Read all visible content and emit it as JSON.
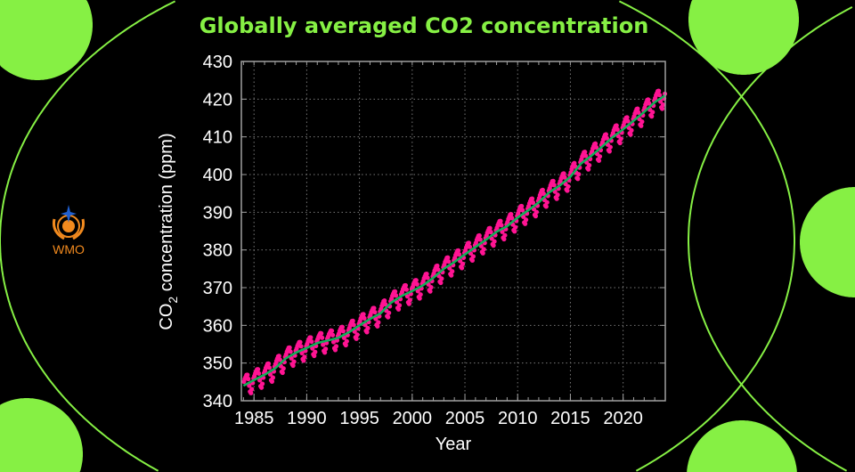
{
  "colors": {
    "accent": "#86f044",
    "monthly": "#ff1493",
    "trend": "#12b05a",
    "axis": "#a0a0a0",
    "text": "#ffffff",
    "logo": "#f28a1e",
    "logo_star": "#1f5fd0"
  },
  "logo": {
    "text": "WMO",
    "icon": "wmo-emblem-icon"
  },
  "chart_data": {
    "type": "line",
    "title": "Globally averaged CO2 concentration",
    "xlabel": "Year",
    "ylabel_main": "CO",
    "ylabel_sub": "2",
    "ylabel_rest": " concentration (ppm)",
    "xlim": [
      1983.8,
      2024
    ],
    "ylim": [
      340,
      430
    ],
    "grid": true,
    "xticks": [
      1985,
      1990,
      1995,
      2000,
      2005,
      2010,
      2015,
      2020
    ],
    "yticks": [
      340,
      350,
      360,
      370,
      380,
      390,
      400,
      410,
      420,
      430
    ],
    "trend": {
      "x": [
        1984,
        1985,
        1986,
        1987,
        1988,
        1989,
        1990,
        1991,
        1992,
        1993,
        1994,
        1995,
        1996,
        1997,
        1998,
        1999,
        2000,
        2001,
        2002,
        2003,
        2004,
        2005,
        2006,
        2007,
        2008,
        2009,
        2010,
        2011,
        2012,
        2013,
        2014,
        2015,
        2016,
        2017,
        2018,
        2019,
        2020,
        2021,
        2022,
        2023,
        2024
      ],
      "y": [
        344.0,
        345.5,
        346.9,
        348.6,
        351.2,
        352.8,
        354.0,
        355.3,
        356.0,
        356.7,
        358.2,
        360.0,
        361.7,
        363.2,
        366.0,
        367.8,
        369.1,
        370.6,
        372.6,
        375.0,
        376.8,
        378.8,
        380.8,
        382.7,
        384.8,
        386.3,
        388.6,
        390.5,
        392.6,
        395.3,
        397.1,
        399.4,
        402.9,
        405.0,
        407.4,
        409.9,
        412.0,
        414.3,
        416.6,
        419.2,
        421.0
      ]
    },
    "seasonal_cycle_ppm": [
      1.0,
      1.6,
      2.0,
      2.4,
      2.3,
      1.1,
      -0.8,
      -2.5,
      -3.0,
      -2.1,
      -0.6,
      0.5
    ]
  }
}
